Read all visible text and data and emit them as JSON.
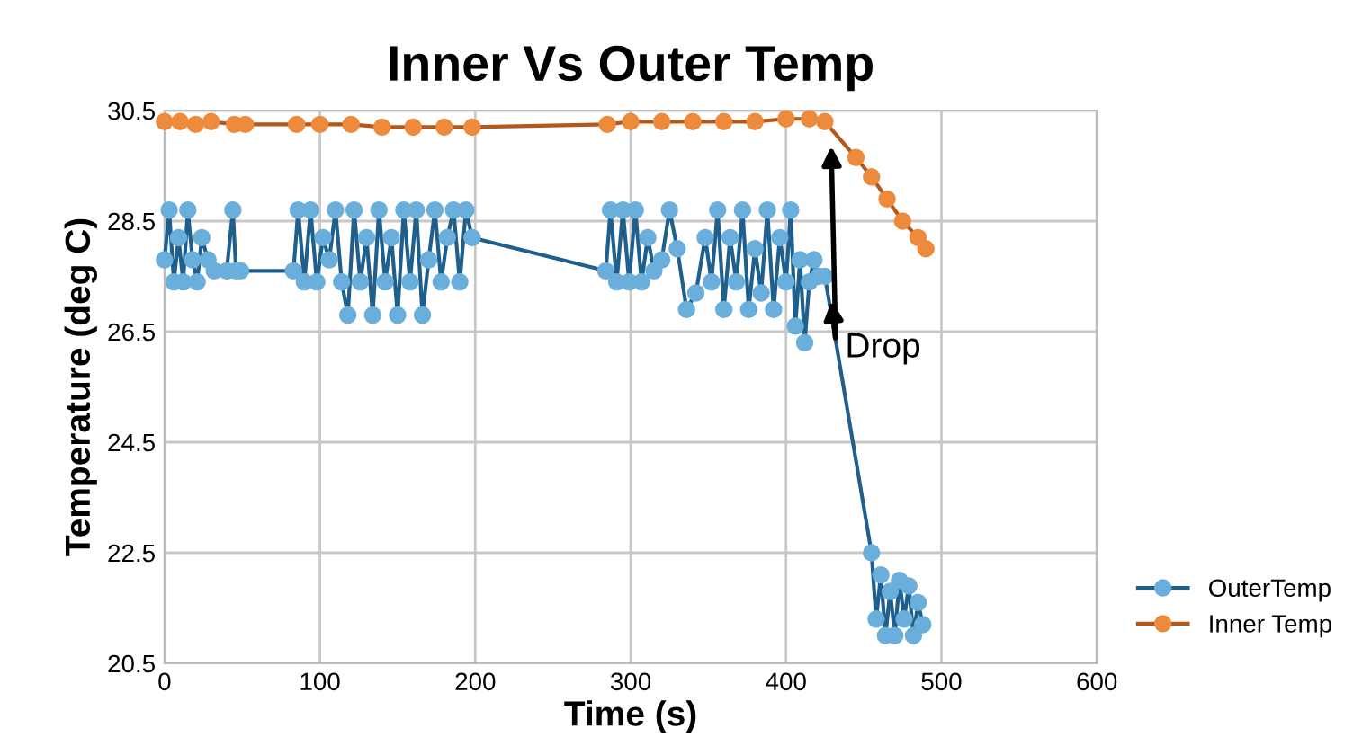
{
  "chart_data": {
    "type": "line",
    "title": "Inner Vs Outer Temp",
    "xlabel": "Time (s)",
    "ylabel": "Temperature (deg C)",
    "xlim": [
      0,
      600
    ],
    "xticks": [
      0,
      100,
      200,
      300,
      400,
      500,
      600
    ],
    "ylim": [
      20.5,
      30.5
    ],
    "yticks": [
      20.5,
      22.5,
      24.5,
      26.5,
      28.5,
      30.5
    ],
    "grid": true,
    "legend": "right",
    "marker": "circle",
    "line_style": "solid",
    "annotations": [
      "Drop"
    ],
    "series": [
      {
        "name": "OuterTemp",
        "color": "#6aafdc",
        "x": [
          0,
          3,
          6,
          9,
          12,
          15,
          18,
          21,
          24,
          28,
          32,
          40,
          44,
          46,
          49,
          83,
          86,
          90,
          94,
          98,
          102,
          106,
          110,
          114,
          118,
          122,
          126,
          130,
          134,
          138,
          142,
          146,
          150,
          154,
          158,
          162,
          166,
          170,
          174,
          178,
          182,
          186,
          190,
          194,
          198,
          284,
          287,
          291,
          295,
          299,
          303,
          307,
          311,
          315,
          320,
          325,
          330,
          336,
          342,
          348,
          352,
          356,
          360,
          364,
          368,
          372,
          376,
          380,
          384,
          388,
          392,
          396,
          400,
          403,
          406,
          409,
          412,
          415,
          418,
          421,
          425,
          455,
          458,
          461,
          464,
          467,
          470,
          473,
          476,
          479,
          482,
          485,
          488
        ],
        "values": [
          27.8,
          28.7,
          27.4,
          28.2,
          27.4,
          28.7,
          27.8,
          27.4,
          28.2,
          27.8,
          27.6,
          27.6,
          28.7,
          27.6,
          27.6,
          27.6,
          28.7,
          27.4,
          28.7,
          27.4,
          28.2,
          27.8,
          28.7,
          27.4,
          26.8,
          28.7,
          27.4,
          28.2,
          26.8,
          28.7,
          27.4,
          28.2,
          26.8,
          28.7,
          27.4,
          28.7,
          26.8,
          27.8,
          28.7,
          27.4,
          28.2,
          28.7,
          27.4,
          28.7,
          28.2,
          27.6,
          28.7,
          27.4,
          28.7,
          27.4,
          28.7,
          27.4,
          28.2,
          27.6,
          27.8,
          28.7,
          28.0,
          26.9,
          27.2,
          28.2,
          27.4,
          28.7,
          26.9,
          28.2,
          27.4,
          28.7,
          26.9,
          28.0,
          27.2,
          28.7,
          26.9,
          28.2,
          27.4,
          28.7,
          26.6,
          27.8,
          26.3,
          27.4,
          27.8,
          27.5,
          27.5,
          22.5,
          21.3,
          22.1,
          21.0,
          21.8,
          21.0,
          22.0,
          21.3,
          21.9,
          21.0,
          21.6,
          21.2
        ]
      },
      {
        "name": "Inner Temp",
        "color": "#ee8a3c",
        "x": [
          0,
          10,
          20,
          30,
          45,
          52,
          85,
          100,
          120,
          140,
          160,
          180,
          198,
          285,
          300,
          320,
          340,
          360,
          380,
          400,
          415,
          425,
          445,
          455,
          465,
          475,
          485,
          490
        ],
        "values": [
          30.3,
          30.3,
          30.25,
          30.3,
          30.25,
          30.25,
          30.25,
          30.25,
          30.25,
          30.2,
          30.2,
          30.2,
          30.2,
          30.25,
          30.3,
          30.3,
          30.3,
          30.3,
          30.3,
          30.35,
          30.35,
          30.3,
          29.65,
          29.3,
          28.9,
          28.5,
          28.2,
          28.0
        ]
      }
    ]
  }
}
